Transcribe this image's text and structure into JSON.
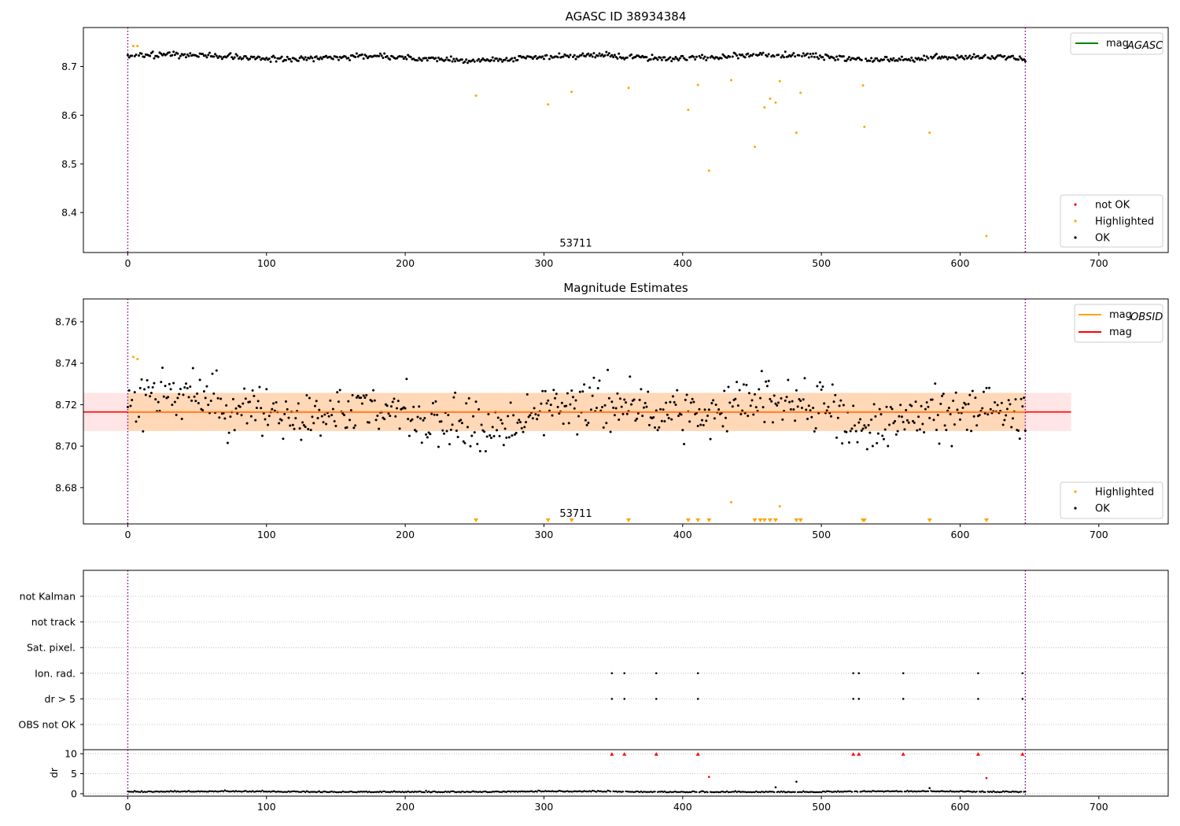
{
  "chart_data": [
    {
      "type": "scatter",
      "title": "AGASC ID 38934384",
      "xlim": [
        -32,
        750
      ],
      "ylim": [
        8.318,
        8.78
      ],
      "xticks": [
        0,
        100,
        200,
        300,
        400,
        500,
        600,
        700
      ],
      "yticks": [
        8.4,
        8.5,
        8.6,
        8.7
      ],
      "ytick_labels": [
        "8.4",
        "8.5",
        "8.6",
        "8.7"
      ],
      "vlines": [
        0,
        647
      ],
      "annotation": {
        "text": "53711",
        "x": 323,
        "y": 8.33
      },
      "legend_lines": [
        {
          "label": "mag",
          "sub": "AGASC",
          "color": "#008000"
        }
      ],
      "legend_points": [
        {
          "label": "not OK",
          "color": "#ff0000"
        },
        {
          "label": "Highlighted",
          "color": "#ffa500"
        },
        {
          "label": "OK",
          "color": "#000000"
        }
      ],
      "highlighted_points": [
        [
          4,
          8.742
        ],
        [
          7,
          8.742
        ],
        [
          251,
          8.64
        ],
        [
          303,
          8.622
        ],
        [
          320,
          8.648
        ],
        [
          361,
          8.656
        ],
        [
          404,
          8.611
        ],
        [
          411,
          8.662
        ],
        [
          419,
          8.486
        ],
        [
          435,
          8.672
        ],
        [
          452,
          8.535
        ],
        [
          459,
          8.616
        ],
        [
          463,
          8.634
        ],
        [
          467,
          8.626
        ],
        [
          470,
          8.67
        ],
        [
          482,
          8.564
        ],
        [
          485,
          8.646
        ],
        [
          530,
          8.661
        ],
        [
          531,
          8.576
        ],
        [
          578,
          8.564
        ],
        [
          619,
          8.352
        ]
      ]
    },
    {
      "type": "scatter",
      "title": "Magnitude Estimates",
      "xlim": [
        -32,
        750
      ],
      "ylim": [
        8.6625,
        8.771
      ],
      "xticks": [
        0,
        100,
        200,
        300,
        400,
        500,
        600,
        700
      ],
      "yticks": [
        8.68,
        8.7,
        8.72,
        8.74,
        8.76
      ],
      "ytick_labels": [
        "8.68",
        "8.70",
        "8.72",
        "8.74",
        "8.76"
      ],
      "vlines": [
        0,
        647
      ],
      "annotation": {
        "text": "53711",
        "x": 323,
        "y": 8.6655
      },
      "mag": 8.7165,
      "mag_obsid_band": [
        8.7073,
        8.7257
      ],
      "mag_band": [
        8.7073,
        8.7257
      ],
      "legend_lines": [
        {
          "label": "mag",
          "sub": "OBSID",
          "color": "#ffa500"
        },
        {
          "label": "mag",
          "sub": "",
          "color": "#ff0000"
        }
      ],
      "legend_points": [
        {
          "label": "Highlighted",
          "color": "#ffa500"
        },
        {
          "label": "OK",
          "color": "#000000"
        }
      ],
      "highlighted_points": [
        [
          4,
          8.743
        ],
        [
          7,
          8.742
        ],
        [
          435,
          8.673
        ],
        [
          470,
          8.671
        ]
      ],
      "offscale_markers_x": [
        251,
        303,
        320,
        361,
        404,
        411,
        419,
        452,
        456,
        459,
        463,
        467,
        482,
        485,
        530,
        531,
        578,
        619
      ]
    },
    {
      "type": "scatter",
      "title": "",
      "xlim": [
        -32,
        750
      ],
      "categories": [
        "OBS not OK",
        "dr > 5",
        "Ion. rad.",
        "Sat. pixel.",
        "not track",
        "not Kalman"
      ],
      "vlines": [
        0,
        647
      ],
      "flag_points": {
        "Ion. rad.": [
          349,
          358,
          381,
          411,
          523,
          527,
          559,
          613,
          645
        ],
        "dr > 5": [
          349,
          358,
          381,
          411,
          523,
          527,
          559,
          613,
          645
        ]
      }
    },
    {
      "type": "scatter",
      "title": "",
      "ylabel": "dr",
      "xlim": [
        -32,
        750
      ],
      "ylim": [
        -0.6,
        11
      ],
      "xticks": [
        0,
        100,
        200,
        300,
        400,
        500,
        600,
        700
      ],
      "yticks": [
        0,
        5,
        10
      ],
      "ytick_labels": [
        "0",
        "5",
        "10"
      ],
      "vlines": [
        0,
        647
      ],
      "capped_points_x": [
        349,
        358,
        381,
        411,
        523,
        527,
        559,
        613,
        645
      ],
      "outlier_points": [
        [
          419,
          4.2
        ],
        [
          482,
          3.0
        ],
        [
          619,
          3.9
        ],
        [
          467,
          1.6
        ],
        [
          578,
          1.4
        ]
      ]
    }
  ]
}
